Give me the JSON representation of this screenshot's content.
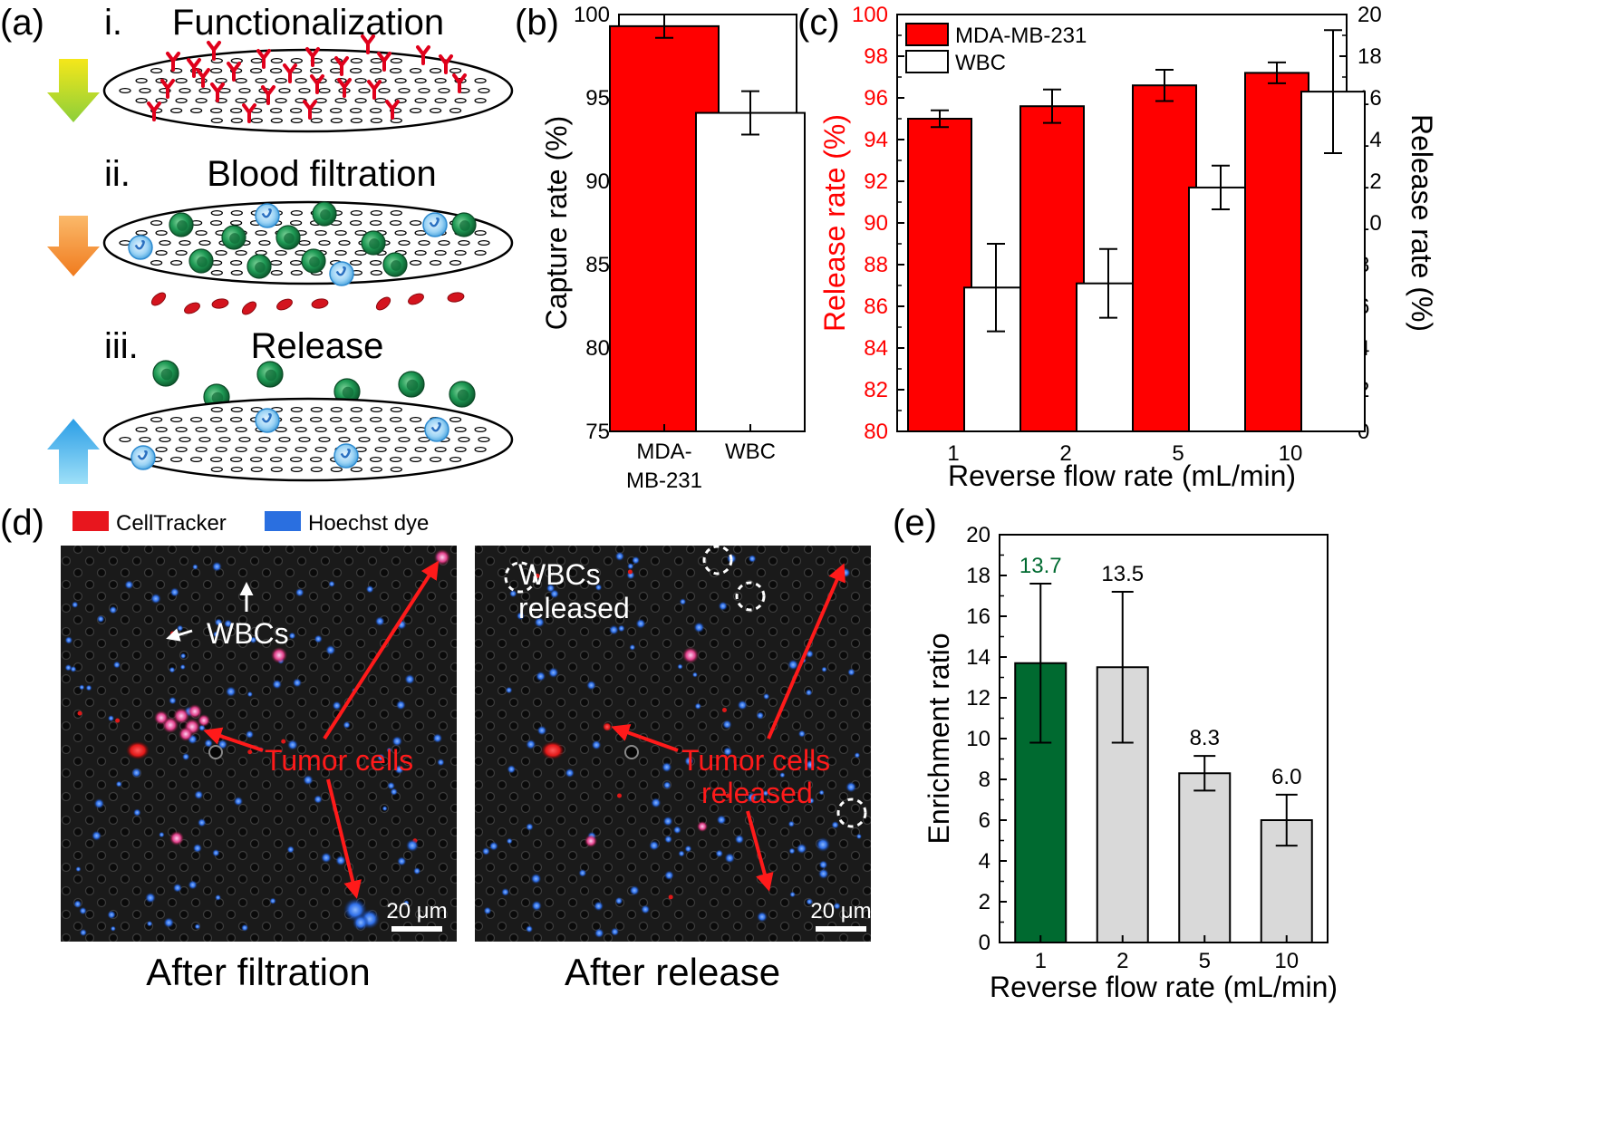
{
  "panels": {
    "a": {
      "label": "(a)",
      "steps": [
        {
          "num": "i.",
          "text": "Functionalization"
        },
        {
          "num": "ii.",
          "text": "Blood filtration"
        },
        {
          "num": "iii.",
          "text": "Release"
        }
      ],
      "colors": {
        "arrow1": "#b7dd2a",
        "arrow2": "#f49a3a",
        "arrow3": "#5cc2f0",
        "antibody": "#e0001b",
        "tumor_cell": "#1d8a4a",
        "wbc": "#6ab8ec",
        "rbc": "#d4141e"
      }
    },
    "b": {
      "label": "(b)"
    },
    "c": {
      "label": "(c)"
    },
    "d": {
      "label": "(d)",
      "legend": [
        {
          "name": "CellTracker",
          "color": "#e8161e"
        },
        {
          "name": "Hoechst dye",
          "color": "#2a6fe0"
        }
      ],
      "left_image": {
        "wbcs_label": "WBCs",
        "tumor_label": "Tumor cells",
        "scalebar": "20 μm",
        "caption": "After filtration"
      },
      "right_image": {
        "wbcs_label_1": "WBCs",
        "wbcs_label_2": "released",
        "tumor_label_1": "Tumor cells",
        "tumor_label_2": "released",
        "scalebar": "20 μm",
        "caption": "After release"
      }
    },
    "e": {
      "label": "(e)"
    }
  },
  "chart_data": [
    {
      "panel": "b",
      "type": "bar",
      "categories": [
        "MDA-MB-231",
        "WBC"
      ],
      "category_label_lines": [
        [
          "MDA-",
          "MB-231"
        ],
        [
          "WBC"
        ]
      ],
      "values": [
        99.3,
        94.1
      ],
      "errors": [
        0.7,
        1.3
      ],
      "bar_colors": [
        "#ff0000",
        "#ffffff"
      ],
      "ylabel": "Capture rate (%)",
      "ylim": [
        75,
        100
      ],
      "yticks": [
        "75",
        "80",
        "85",
        "90",
        "95",
        "100"
      ]
    },
    {
      "panel": "c",
      "type": "bar",
      "categories": [
        "1",
        "2",
        "5",
        "10"
      ],
      "xlabel": "Reverse flow rate (mL/min)",
      "series": [
        {
          "name": "MDA-MB-231",
          "axis": "left",
          "color": "#ff0000",
          "values": [
            95.0,
            95.6,
            96.6,
            97.2
          ],
          "errors": [
            0.4,
            0.8,
            0.75,
            0.5
          ]
        },
        {
          "name": "WBC",
          "axis": "right",
          "color": "#ffffff",
          "values": [
            6.9,
            7.1,
            11.7,
            16.3
          ],
          "errors": [
            2.1,
            1.65,
            1.05,
            2.95
          ]
        }
      ],
      "ylabel_left": "Release rate (%)",
      "ylim_left": [
        80,
        100
      ],
      "yticks_left": [
        "80",
        "82",
        "84",
        "86",
        "88",
        "90",
        "92",
        "94",
        "96",
        "98",
        "100"
      ],
      "ylabel_right": "Release rate (%)",
      "ylim_right": [
        0,
        20
      ],
      "yticks_right": [
        "0",
        "2",
        "4",
        "6",
        "8",
        "10",
        "12",
        "14",
        "16",
        "18",
        "20"
      ],
      "legend": "top-left",
      "colors": {
        "left_axis": "#ff0000"
      }
    },
    {
      "panel": "e",
      "type": "bar",
      "categories": [
        "1",
        "2",
        "5",
        "10"
      ],
      "values": [
        13.7,
        13.5,
        8.3,
        6.0
      ],
      "errors": [
        3.9,
        3.7,
        0.85,
        1.25
      ],
      "value_labels": [
        "13.7",
        "13.5",
        "8.3",
        "6.0"
      ],
      "bar_colors": [
        "#006a30",
        "#d9d9d9",
        "#d9d9d9",
        "#d9d9d9"
      ],
      "label_colors": [
        "#006a30",
        "#000000",
        "#000000",
        "#000000"
      ],
      "xlabel": "Reverse flow rate (mL/min)",
      "ylabel": "Enrichment ratio",
      "ylim": [
        0,
        20
      ],
      "yticks": [
        "0",
        "2",
        "4",
        "6",
        "8",
        "10",
        "12",
        "14",
        "16",
        "18",
        "20"
      ]
    }
  ]
}
